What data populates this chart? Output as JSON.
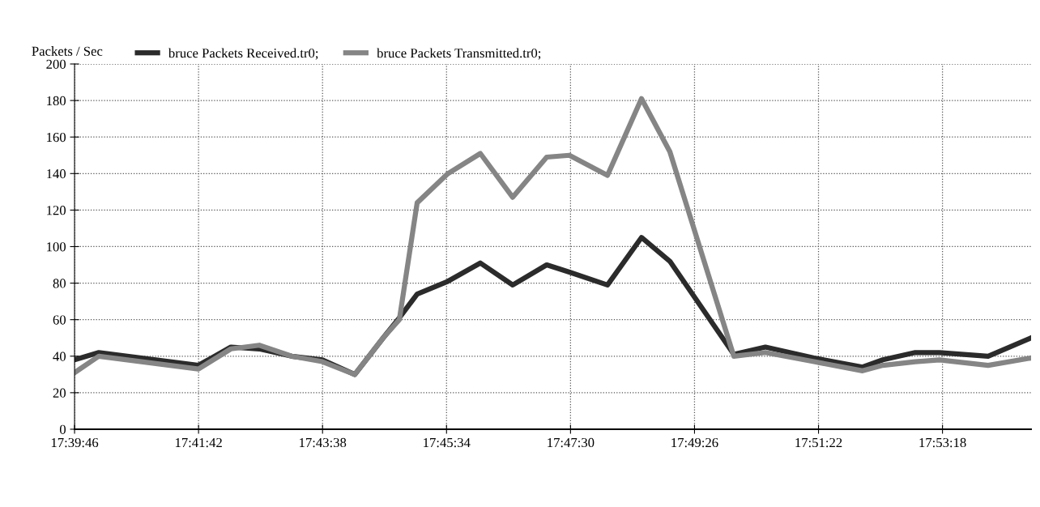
{
  "chart_data": {
    "type": "line",
    "ylabel": "Packets / Sec",
    "x": [
      17.662778,
      17.66909,
      17.69498,
      17.7034,
      17.71077,
      17.71919,
      17.72718,
      17.7356,
      17.74297,
      17.74718,
      17.75181,
      17.75981,
      17.76823,
      17.77664,
      17.78548,
      17.79138,
      17.80127,
      17.81011,
      17.81748,
      17.8341,
      17.84231,
      17.85494,
      17.86757,
      17.87283,
      17.88125,
      17.88756,
      17.90019,
      17.91135
    ],
    "series": [
      {
        "name": "bruce Packets Received.tr0;",
        "color": "#2b2b2b",
        "values": [
          38,
          42,
          35,
          45,
          44,
          40,
          38,
          30,
          50,
          61,
          74,
          81,
          91,
          79,
          90,
          86,
          79,
          105,
          92,
          41,
          45,
          39,
          34,
          38,
          42,
          42,
          40,
          50
        ]
      },
      {
        "name": "bruce Packets Transmitted.tr0;",
        "color": "#858585",
        "values": [
          31,
          40,
          33,
          44,
          46,
          40,
          37,
          30,
          50,
          60,
          124,
          140,
          151,
          127,
          149,
          150,
          139,
          181,
          152,
          40,
          42,
          37,
          32,
          35,
          37,
          38,
          35,
          39
        ]
      }
    ],
    "xlim": [
      17.662778,
      17.91135
    ],
    "xticks": [
      {
        "value": 17.662778,
        "label": "17:39:46"
      },
      {
        "value": 17.695,
        "label": "17:41:42"
      },
      {
        "value": 17.727222,
        "label": "17:43:38"
      },
      {
        "value": 17.759444,
        "label": "17:45:34"
      },
      {
        "value": 17.791667,
        "label": "17:47:30"
      },
      {
        "value": 17.823889,
        "label": "17:49:26"
      },
      {
        "value": 17.856111,
        "label": "17:51:22"
      },
      {
        "value": 17.888333,
        "label": "17:53:18"
      }
    ],
    "ylim": [
      0,
      200
    ],
    "yticks": [
      0,
      20,
      40,
      60,
      80,
      100,
      120,
      140,
      160,
      180,
      200
    ],
    "grid": true,
    "legend": "top left",
    "marker": "none",
    "line_style": "solid"
  }
}
